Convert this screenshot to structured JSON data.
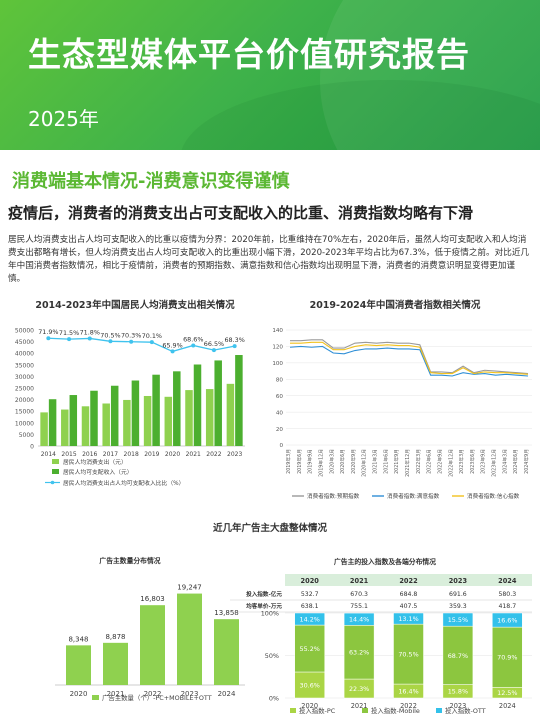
{
  "header": {
    "title": "生态型媒体平台价值研究报告",
    "year": "2025年"
  },
  "section": {
    "title": "消费端基本情况-消费意识变得谨慎",
    "subtitle": "疫情后，消费者的消费支出占可支配收入的比重、消费指数均略有下滑",
    "paragraph": "居民人均消费支出占人均可支配收入的比重以疫情为分界：2020年前，比重维持在70%左右，2020年后，虽然人均可支配收入和人均消费支出都略有增长，但人均消费支出占人均可支配收入的比重出现小幅下滑，2020-2023年平均占比为67.3%，低于疫情之前。对比近几年中国消费者指数情况，相比于疫情前，消费者的预期指数、满意指数和信心指数均出现明显下滑，消费者的消费意识明显变得更加谨慎。"
  },
  "colors": {
    "accent": "#5bb833",
    "bar_light": "#8fd14f",
    "bar_dark": "#4caf2f",
    "line_cyan": "#3fc3ee",
    "mobile": "#8cc63f",
    "pc": "#aad545",
    "ott": "#33c1ea",
    "tv_blue": "#2f8fd6",
    "tv_gray": "#9a9a9a",
    "tv_yellow": "#f2c21e"
  },
  "chart_data": [
    {
      "type": "bar",
      "title": "2014-2023年中国居民人均消费支出相关情况",
      "categories": [
        "2014",
        "2015",
        "2016",
        "2017",
        "2018",
        "2019",
        "2020",
        "2021",
        "2022",
        "2023"
      ],
      "series": [
        {
          "name": "居民人均消费支出（元）",
          "values": [
            14491,
            15712,
            17111,
            18322,
            19853,
            21559,
            21210,
            24100,
            24538,
            26796
          ]
        },
        {
          "name": "居民人均可支配收入（元）",
          "values": [
            20167,
            21966,
            23821,
            25974,
            28228,
            30733,
            32189,
            35128,
            36883,
            39218
          ]
        },
        {
          "name": "居民人均消费支出占人均可支配收入比比（%）",
          "values": [
            71.9,
            71.5,
            71.8,
            70.5,
            70.3,
            70.1,
            65.9,
            68.6,
            66.5,
            68.3
          ]
        }
      ],
      "ylim": [
        0,
        50000
      ],
      "yticks": [
        "0",
        "5000",
        "10000",
        "15000",
        "20000",
        "25000",
        "30000",
        "35000",
        "40000",
        "45000",
        "50000"
      ],
      "pct_labels": [
        "71.9%",
        "71.5%",
        "71.8%",
        "70.5%",
        "70.3%",
        "70.1%",
        "65.9%",
        "68.6%",
        "66.5%",
        "68.3%"
      ],
      "legend": [
        "居民人均消费支出（元）",
        "居民人均可支配收入（元）",
        "居民人均消费支出占人均可支配收入比比（%）"
      ]
    },
    {
      "type": "line",
      "title": "2019-2024年中国消费者指数相关情况",
      "x": [
        "2019年3月",
        "2019年6月",
        "2019年9月",
        "2019年12月",
        "2020年3月",
        "2020年6月",
        "2020年9月",
        "2020年12月",
        "2021年3月",
        "2021年6月",
        "2021年9月",
        "2021年12月",
        "2022年3月",
        "2022年6月",
        "2022年9月",
        "2022年12月",
        "2023年3月",
        "2023年6月",
        "2023年9月",
        "2023年12月",
        "2024年3月",
        "2024年6月",
        "2024年9月"
      ],
      "series": [
        {
          "name": "消费者指数:预期指数",
          "values": [
            127,
            127,
            128,
            128,
            118,
            118,
            124,
            125,
            124,
            125,
            124,
            124,
            122,
            89,
            89,
            88,
            96,
            88,
            91,
            90,
            89,
            88,
            87
          ]
        },
        {
          "name": "消费者指数:满意指数",
          "values": [
            119,
            120,
            119,
            120,
            112,
            111,
            115,
            117,
            117,
            118,
            117,
            117,
            116,
            85,
            85,
            84,
            88,
            86,
            87,
            85,
            86,
            85,
            84
          ]
        },
        {
          "name": "消费者指数:信心指数",
          "values": [
            124,
            124,
            125,
            125,
            116,
            116,
            120,
            122,
            121,
            122,
            121,
            121,
            119,
            88,
            87,
            87,
            94,
            87,
            89,
            88,
            88,
            87,
            86
          ]
        }
      ],
      "ylim": [
        0,
        140
      ],
      "yticks": [
        "0",
        "20",
        "40",
        "60",
        "80",
        "100",
        "120",
        "140"
      ]
    },
    {
      "type": "bar",
      "title": "广告主数量分布情况",
      "categories": [
        "2020",
        "2021",
        "2022",
        "2023",
        "2024"
      ],
      "values": [
        8348,
        8878,
        16803,
        19247,
        13858
      ],
      "value_labels": [
        "8,348",
        "8,878",
        "16,803",
        "19,247",
        "13,858"
      ],
      "legend": "广告主数量（个）-PC+MOBILE+OTT"
    },
    {
      "type": "bar",
      "title": "广告主的投入指数及各端分布情况",
      "categories": [
        "2020",
        "2021",
        "2022",
        "2023",
        "2024"
      ],
      "table_rows": [
        {
          "label": "投入指数-亿元",
          "values": [
            "532.7",
            "670.3",
            "684.8",
            "691.6",
            "580.3"
          ]
        },
        {
          "label": "均客单价-万元",
          "values": [
            "638.1",
            "755.1",
            "407.5",
            "359.3",
            "418.7"
          ]
        }
      ],
      "series": [
        {
          "name": "投入指数-PC",
          "values": [
            30.6,
            22.3,
            16.4,
            15.8,
            12.5
          ],
          "labels": [
            "30.6%",
            "22.3%",
            "16.4%",
            "15.8%",
            "12.5%"
          ]
        },
        {
          "name": "投入指数-Mobile",
          "values": [
            55.2,
            63.2,
            70.5,
            68.7,
            70.9
          ],
          "labels": [
            "55.2%",
            "63.2%",
            "70.5%",
            "68.7%",
            "70.9%"
          ]
        },
        {
          "name": "投入指数-OTT",
          "values": [
            14.2,
            14.4,
            13.1,
            15.5,
            16.6
          ],
          "labels": [
            "14.2%",
            "14.4%",
            "13.1%",
            "15.5%",
            "16.6%"
          ]
        }
      ],
      "yticks": [
        "0%",
        "50%",
        "100%"
      ]
    }
  ],
  "ad_section_title": "近几年广告主大盘整体情况"
}
